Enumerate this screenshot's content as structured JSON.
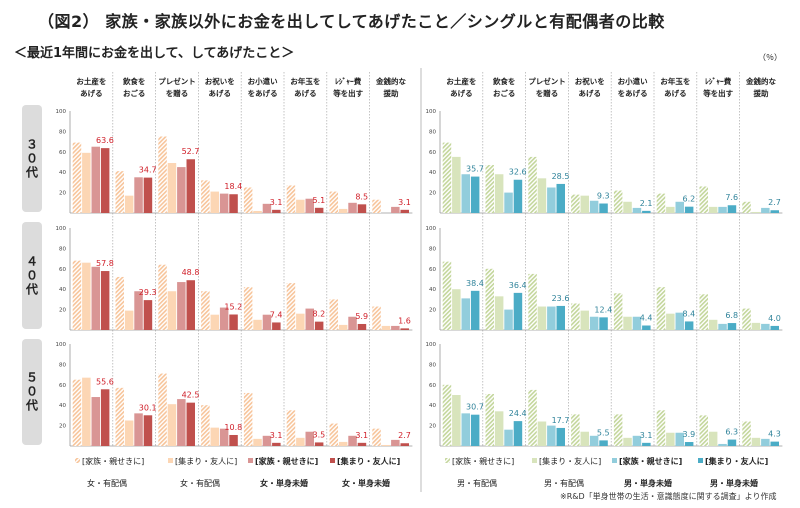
{
  "title": "（図2） 家族・家族以外にお金を出してしてあげたこと／シングルと有配偶者の比較",
  "subtitle": "＜最近1年間にお金を出して、してあげたこと＞",
  "unit": "（％）",
  "footnote": "※R&D「単身世帯の生活・意識態度に関する調査」より作成",
  "ages": [
    "３０代",
    "４０代",
    "５０代"
  ],
  "chart_data": [
    {
      "type": "bar",
      "panel": "female",
      "categories": [
        [
          "お土産を",
          "あげる"
        ],
        [
          "飲食を",
          "おごる"
        ],
        [
          "プレゼント",
          "を贈る"
        ],
        [
          "お祝いを",
          "あげる"
        ],
        [
          "お小遣い",
          "をあげる"
        ],
        [
          "お年玉を",
          "あげる"
        ],
        [
          "ﾚｼﾞｬｰ費",
          "等を出す"
        ],
        [
          "金銭的な",
          "援助"
        ]
      ],
      "yticks": [
        20,
        40,
        60,
        80,
        100
      ],
      "ylim": [
        0,
        100
      ],
      "label_color": "#d0202a",
      "series": [
        {
          "name": "[家族・親せきに]",
          "group": "女・有配偶",
          "color": "#f7c49a",
          "hatched": true,
          "bold": false,
          "values": [
            [
              69,
              41,
              75,
              32,
              25,
              27,
              21,
              13
            ],
            [
              68,
              52,
              64,
              38,
              42,
              46,
              30,
              23
            ],
            [
              65,
              57,
              71,
              40,
              52,
              35,
              22,
              17
            ]
          ]
        },
        {
          "name": "[集まり・友人に]",
          "group": "女・有配偶",
          "color": "#fcd6b4",
          "hatched": false,
          "bold": false,
          "values": [
            [
              59,
              17,
              49,
              21,
              2,
              13,
              4,
              0
            ],
            [
              66,
              19,
              38,
              15,
              10,
              16,
              5,
              4
            ],
            [
              67,
              25,
              41,
              18,
              7,
              8,
              4,
              1
            ]
          ]
        },
        {
          "name": "[家族・親せきに]",
          "group": "女・単身未婚",
          "color": "#d99594",
          "hatched": false,
          "bold": true,
          "values": [
            [
              65,
              35,
              45,
              19,
              9,
              14,
              10,
              6
            ],
            [
              62,
              38,
              47,
              22,
              15,
              21,
              13,
              4
            ],
            [
              48,
              32,
              46,
              17,
              10,
              14,
              10,
              6
            ]
          ]
        },
        {
          "name": "[集まり・友人に]",
          "group": "女・単身未婚",
          "color": "#c0504d",
          "hatched": false,
          "bold": true,
          "labeled": true,
          "values": [
            [
              63.6,
              34.7,
              52.7,
              18.4,
              3.1,
              5.1,
              8.5,
              3.1
            ],
            [
              57.8,
              29.3,
              48.8,
              15.2,
              7.4,
              8.2,
              5.9,
              1.6
            ],
            [
              55.6,
              30.1,
              42.5,
              10.8,
              3.1,
              3.5,
              3.1,
              2.7
            ]
          ]
        }
      ]
    },
    {
      "type": "bar",
      "panel": "male",
      "categories": [
        [
          "お土産を",
          "あげる"
        ],
        [
          "飲食を",
          "おごる"
        ],
        [
          "プレゼント",
          "を贈る"
        ],
        [
          "お祝いを",
          "あげる"
        ],
        [
          "お小遣い",
          "をあげる"
        ],
        [
          "お年玉を",
          "あげる"
        ],
        [
          "ﾚｼﾞｬｰ費",
          "等を出す"
        ],
        [
          "金銭的な",
          "援助"
        ]
      ],
      "yticks": [
        20,
        40,
        60,
        80,
        100
      ],
      "ylim": [
        0,
        100
      ],
      "label_color": "#31849b",
      "series": [
        {
          "name": "[家族・親せきに]",
          "group": "男・有配偶",
          "color": "#c3d69b",
          "hatched": true,
          "bold": false,
          "values": [
            [
              69,
              47,
              55,
              18,
              22,
              19,
              26,
              11
            ],
            [
              67,
              60,
              55,
              26,
              36,
              42,
              35,
              21
            ],
            [
              60,
              51,
              55,
              31,
              31,
              35,
              30,
              24
            ]
          ]
        },
        {
          "name": "[集まり・友人に]",
          "group": "男・有配偶",
          "color": "#d8e4bc",
          "hatched": false,
          "bold": false,
          "values": [
            [
              55,
              38,
              34,
              17,
              11,
              6,
              6,
              1
            ],
            [
              40,
              33,
              23,
              19,
              13,
              16,
              10,
              7
            ],
            [
              50,
              34,
              24,
              14,
              8,
              13,
              14,
              8
            ]
          ]
        },
        {
          "name": "[家族・親せきに]",
          "group": "男・単身未婚",
          "color": "#92cddc",
          "hatched": false,
          "bold": true,
          "values": [
            [
              38,
              20,
              25,
              12,
              5,
              11,
              6,
              5
            ],
            [
              31,
              20,
              23,
              13,
              13,
              17,
              6,
              6
            ],
            [
              32,
              16,
              20,
              10,
              10,
              13,
              2,
              7
            ]
          ]
        },
        {
          "name": "[集まり・友人に]",
          "group": "男・単身未婚",
          "color": "#4bacc6",
          "hatched": false,
          "bold": true,
          "labeled": true,
          "values": [
            [
              35.7,
              32.6,
              28.5,
              9.3,
              2.1,
              6.2,
              7.6,
              2.7
            ],
            [
              38.4,
              36.4,
              23.6,
              12.4,
              4.4,
              8.4,
              6.8,
              4.0
            ],
            [
              30.7,
              24.4,
              17.7,
              5.5,
              3.1,
              3.9,
              6.3,
              4.3
            ]
          ]
        }
      ]
    }
  ]
}
